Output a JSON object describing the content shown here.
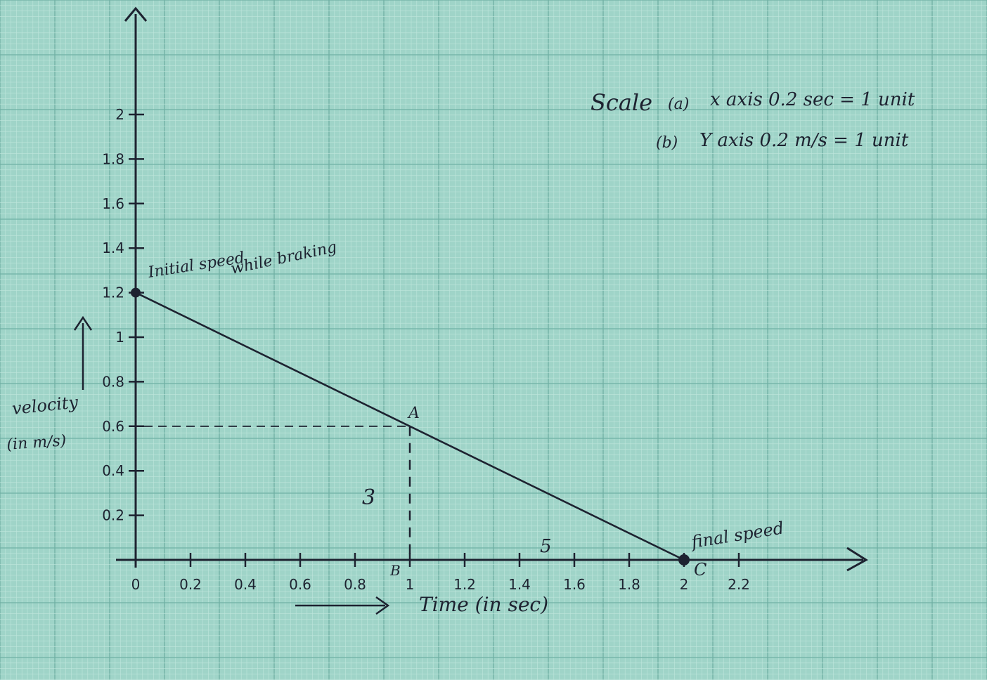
{
  "chart_data": {
    "type": "line",
    "title": "",
    "xlabel": "Time (in sec)",
    "ylabel": "velocity (in m/s)",
    "xlim": [
      0,
      2.3
    ],
    "ylim": [
      0,
      2.1
    ],
    "x_ticks": [
      "0",
      "0.2",
      "0.4",
      "0.6",
      "0.8",
      "1",
      "1.2",
      "1.4",
      "1.6",
      "1.8",
      "2",
      "2.2"
    ],
    "x_tick_values": [
      0,
      0.2,
      0.4,
      0.6,
      0.8,
      1.0,
      1.2,
      1.4,
      1.6,
      1.8,
      2.0,
      2.2
    ],
    "y_ticks": [
      "0.2",
      "0.4",
      "0.6",
      "0.8",
      "1",
      "1.2",
      "1.4",
      "1.6",
      "1.8",
      "2"
    ],
    "y_tick_values": [
      0.2,
      0.4,
      0.6,
      0.8,
      1.0,
      1.2,
      1.4,
      1.6,
      1.8,
      2.0
    ],
    "series": [
      {
        "name": "velocity while braking",
        "x": [
          0,
          1.0,
          2.0
        ],
        "y": [
          1.2,
          0.6,
          0.0
        ]
      }
    ],
    "points": [
      {
        "label": "A",
        "x": 1.0,
        "y": 0.6
      },
      {
        "label": "B",
        "x": 1.0,
        "y": 0.0
      },
      {
        "label": "C",
        "x": 2.0,
        "y": 0.0
      }
    ],
    "annotations": {
      "initial_speed_line1": "Initial speed",
      "initial_speed_line2": "while braking",
      "final_speed": "final speed",
      "height_label": "3",
      "base_label": "5",
      "scale_title": "Scale",
      "scale_x_marker": "(a)",
      "scale_x": "x axis  0.2 sec = 1 unit",
      "scale_y_marker": "(b)",
      "scale_y": "Y axis  0.2 m/s = 1 unit"
    }
  },
  "colors": {
    "paper": "#9fd4c8",
    "grid_minor": "#bfe6dc",
    "grid_major": "#6fb0a4",
    "ink": "#1d2230"
  }
}
